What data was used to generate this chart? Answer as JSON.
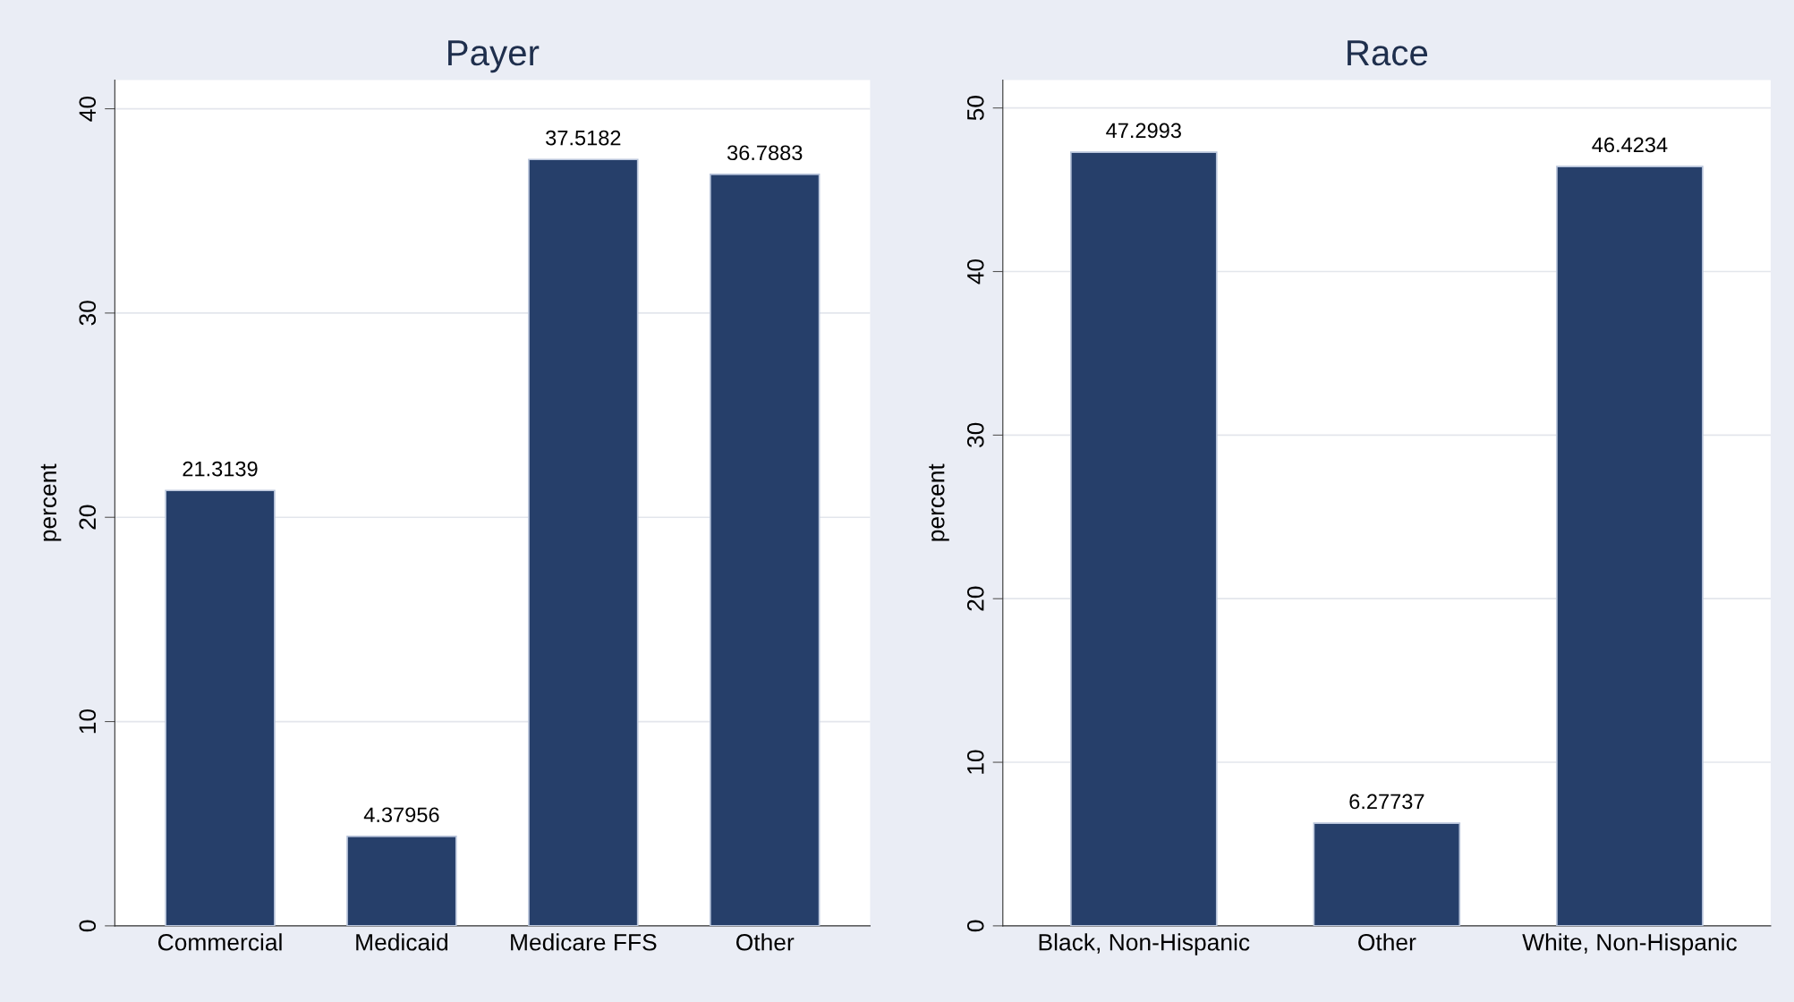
{
  "chart_data": [
    {
      "type": "bar",
      "title": "Payer",
      "ylabel": "percent",
      "categories": [
        "Commercial",
        "Medicaid",
        "Medicare FFS",
        "Other"
      ],
      "values": [
        21.3139,
        4.37956,
        37.5182,
        36.7883
      ],
      "color": "#263f6a",
      "ylim": [
        0,
        41.4
      ],
      "yticks": [
        0,
        10,
        20,
        30,
        40
      ],
      "grid": "y",
      "data_labels": true
    },
    {
      "type": "bar",
      "title": "Race",
      "ylabel": "percent",
      "categories": [
        "Black, Non-Hispanic",
        "Other",
        "White, Non-Hispanic"
      ],
      "values": [
        47.2993,
        6.27737,
        46.4234
      ],
      "color": "#263f6a",
      "ylim": [
        0,
        51.7
      ],
      "yticks": [
        0,
        10,
        20,
        30,
        40,
        50
      ],
      "grid": "y",
      "data_labels": true
    }
  ]
}
